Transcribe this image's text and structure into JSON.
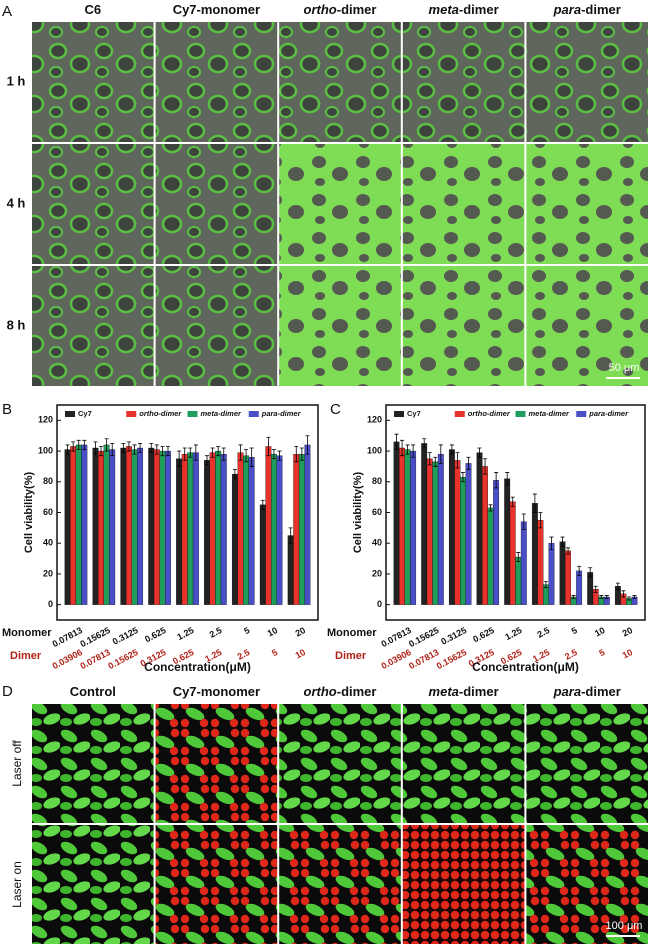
{
  "panel_a": {
    "label": "A",
    "columns": [
      {
        "text": "C6"
      },
      {
        "text": "Cy7-monomer"
      },
      {
        "italic": "ortho",
        "text": "-dimer"
      },
      {
        "italic": "meta",
        "text": "-dimer"
      },
      {
        "italic": "para",
        "text": "-dimer"
      }
    ],
    "rows": [
      "1 h",
      "4 h",
      "8 h"
    ],
    "scale_bar": "50 μm"
  },
  "chart_data": [
    {
      "type": "bar",
      "panel_label": "B",
      "ylabel": "Cell viability(%)",
      "xlabel": "Concentration(μM)",
      "category_names": [
        "Monomer",
        "Dimer"
      ],
      "categories": [
        "0.07813",
        "0.15625",
        "0.3125",
        "0.625",
        "1.25",
        "2.5",
        "5",
        "10",
        "20"
      ],
      "dimer_categories": [
        "0.03906",
        "0.07813",
        "0.15625",
        "0.3125",
        "0.625",
        "1.25",
        "2.5",
        "5",
        "10"
      ],
      "ylim": [
        -10,
        130
      ],
      "yticks": [
        0,
        20,
        40,
        60,
        80,
        100,
        120
      ],
      "legend": "top",
      "series": [
        {
          "name": "Cy7",
          "color": "#222222",
          "values": [
            101,
            102,
            102,
            102,
            95,
            94,
            85,
            65,
            45
          ],
          "errors": [
            3,
            4,
            3,
            3,
            5,
            3,
            3,
            3,
            5
          ]
        },
        {
          "name": "ortho-dimer",
          "color": "#e8322c",
          "values": [
            103,
            100,
            103,
            101,
            98,
            99,
            99,
            103,
            98
          ],
          "errors": [
            3,
            3,
            3,
            3,
            4,
            3,
            5,
            6,
            5
          ]
        },
        {
          "name": "meta-dimer",
          "color": "#1e9e5a",
          "values": [
            104,
            104,
            101,
            100,
            99,
            100,
            97,
            98,
            98
          ],
          "errors": [
            3,
            4,
            3,
            3,
            3,
            3,
            4,
            3,
            4
          ]
        },
        {
          "name": "para-dimer",
          "color": "#4a4fc8",
          "values": [
            104,
            101,
            102,
            100,
            99,
            98,
            96,
            97,
            104
          ],
          "errors": [
            3,
            4,
            3,
            3,
            5,
            4,
            6,
            3,
            6
          ]
        }
      ]
    },
    {
      "type": "bar",
      "panel_label": "C",
      "ylabel": "Cell viability(%)",
      "xlabel": "Concentration(μM)",
      "category_names": [
        "Monomer",
        "Dimer"
      ],
      "categories": [
        "0.07813",
        "0.15625",
        "0.3125",
        "0.625",
        "1.25",
        "2.5",
        "5",
        "10",
        "20"
      ],
      "dimer_categories": [
        "0.03906",
        "0.07813",
        "0.15625",
        "0.3125",
        "0.625",
        "1.25",
        "2.5",
        "5",
        "10"
      ],
      "ylim": [
        -10,
        130
      ],
      "yticks": [
        0,
        20,
        40,
        60,
        80,
        100,
        120
      ],
      "legend": "top",
      "series": [
        {
          "name": "Cy7",
          "color": "#222222",
          "values": [
            106,
            105,
            101,
            99,
            82,
            66,
            41,
            21,
            12
          ],
          "errors": [
            5,
            3,
            3,
            3,
            4,
            6,
            3,
            3,
            2
          ]
        },
        {
          "name": "ortho-dimer",
          "color": "#e8322c",
          "values": [
            102,
            95,
            94,
            90,
            67,
            55,
            35,
            10,
            7
          ],
          "errors": [
            5,
            4,
            5,
            5,
            3,
            5,
            2,
            2,
            2
          ]
        },
        {
          "name": "meta-dimer",
          "color": "#1e9e5a",
          "values": [
            101,
            93,
            83,
            63,
            31,
            13,
            5,
            5,
            4
          ],
          "errors": [
            3,
            3,
            3,
            2,
            3,
            2,
            1,
            1,
            1
          ]
        },
        {
          "name": "para-dimer",
          "color": "#4a4fc8",
          "values": [
            100,
            98,
            92,
            81,
            54,
            40,
            22,
            5,
            5
          ],
          "errors": [
            4,
            6,
            4,
            5,
            5,
            4,
            3,
            1,
            1
          ]
        }
      ]
    }
  ],
  "panel_d": {
    "label": "D",
    "columns": [
      {
        "text": "Control"
      },
      {
        "text": "Cy7-monomer"
      },
      {
        "italic": "ortho",
        "text": "-dimer"
      },
      {
        "italic": "meta",
        "text": "-dimer"
      },
      {
        "italic": "para",
        "text": "-dimer"
      }
    ],
    "rows": [
      "Laser off",
      "Laser on"
    ],
    "scale_bar": "100 μm"
  }
}
